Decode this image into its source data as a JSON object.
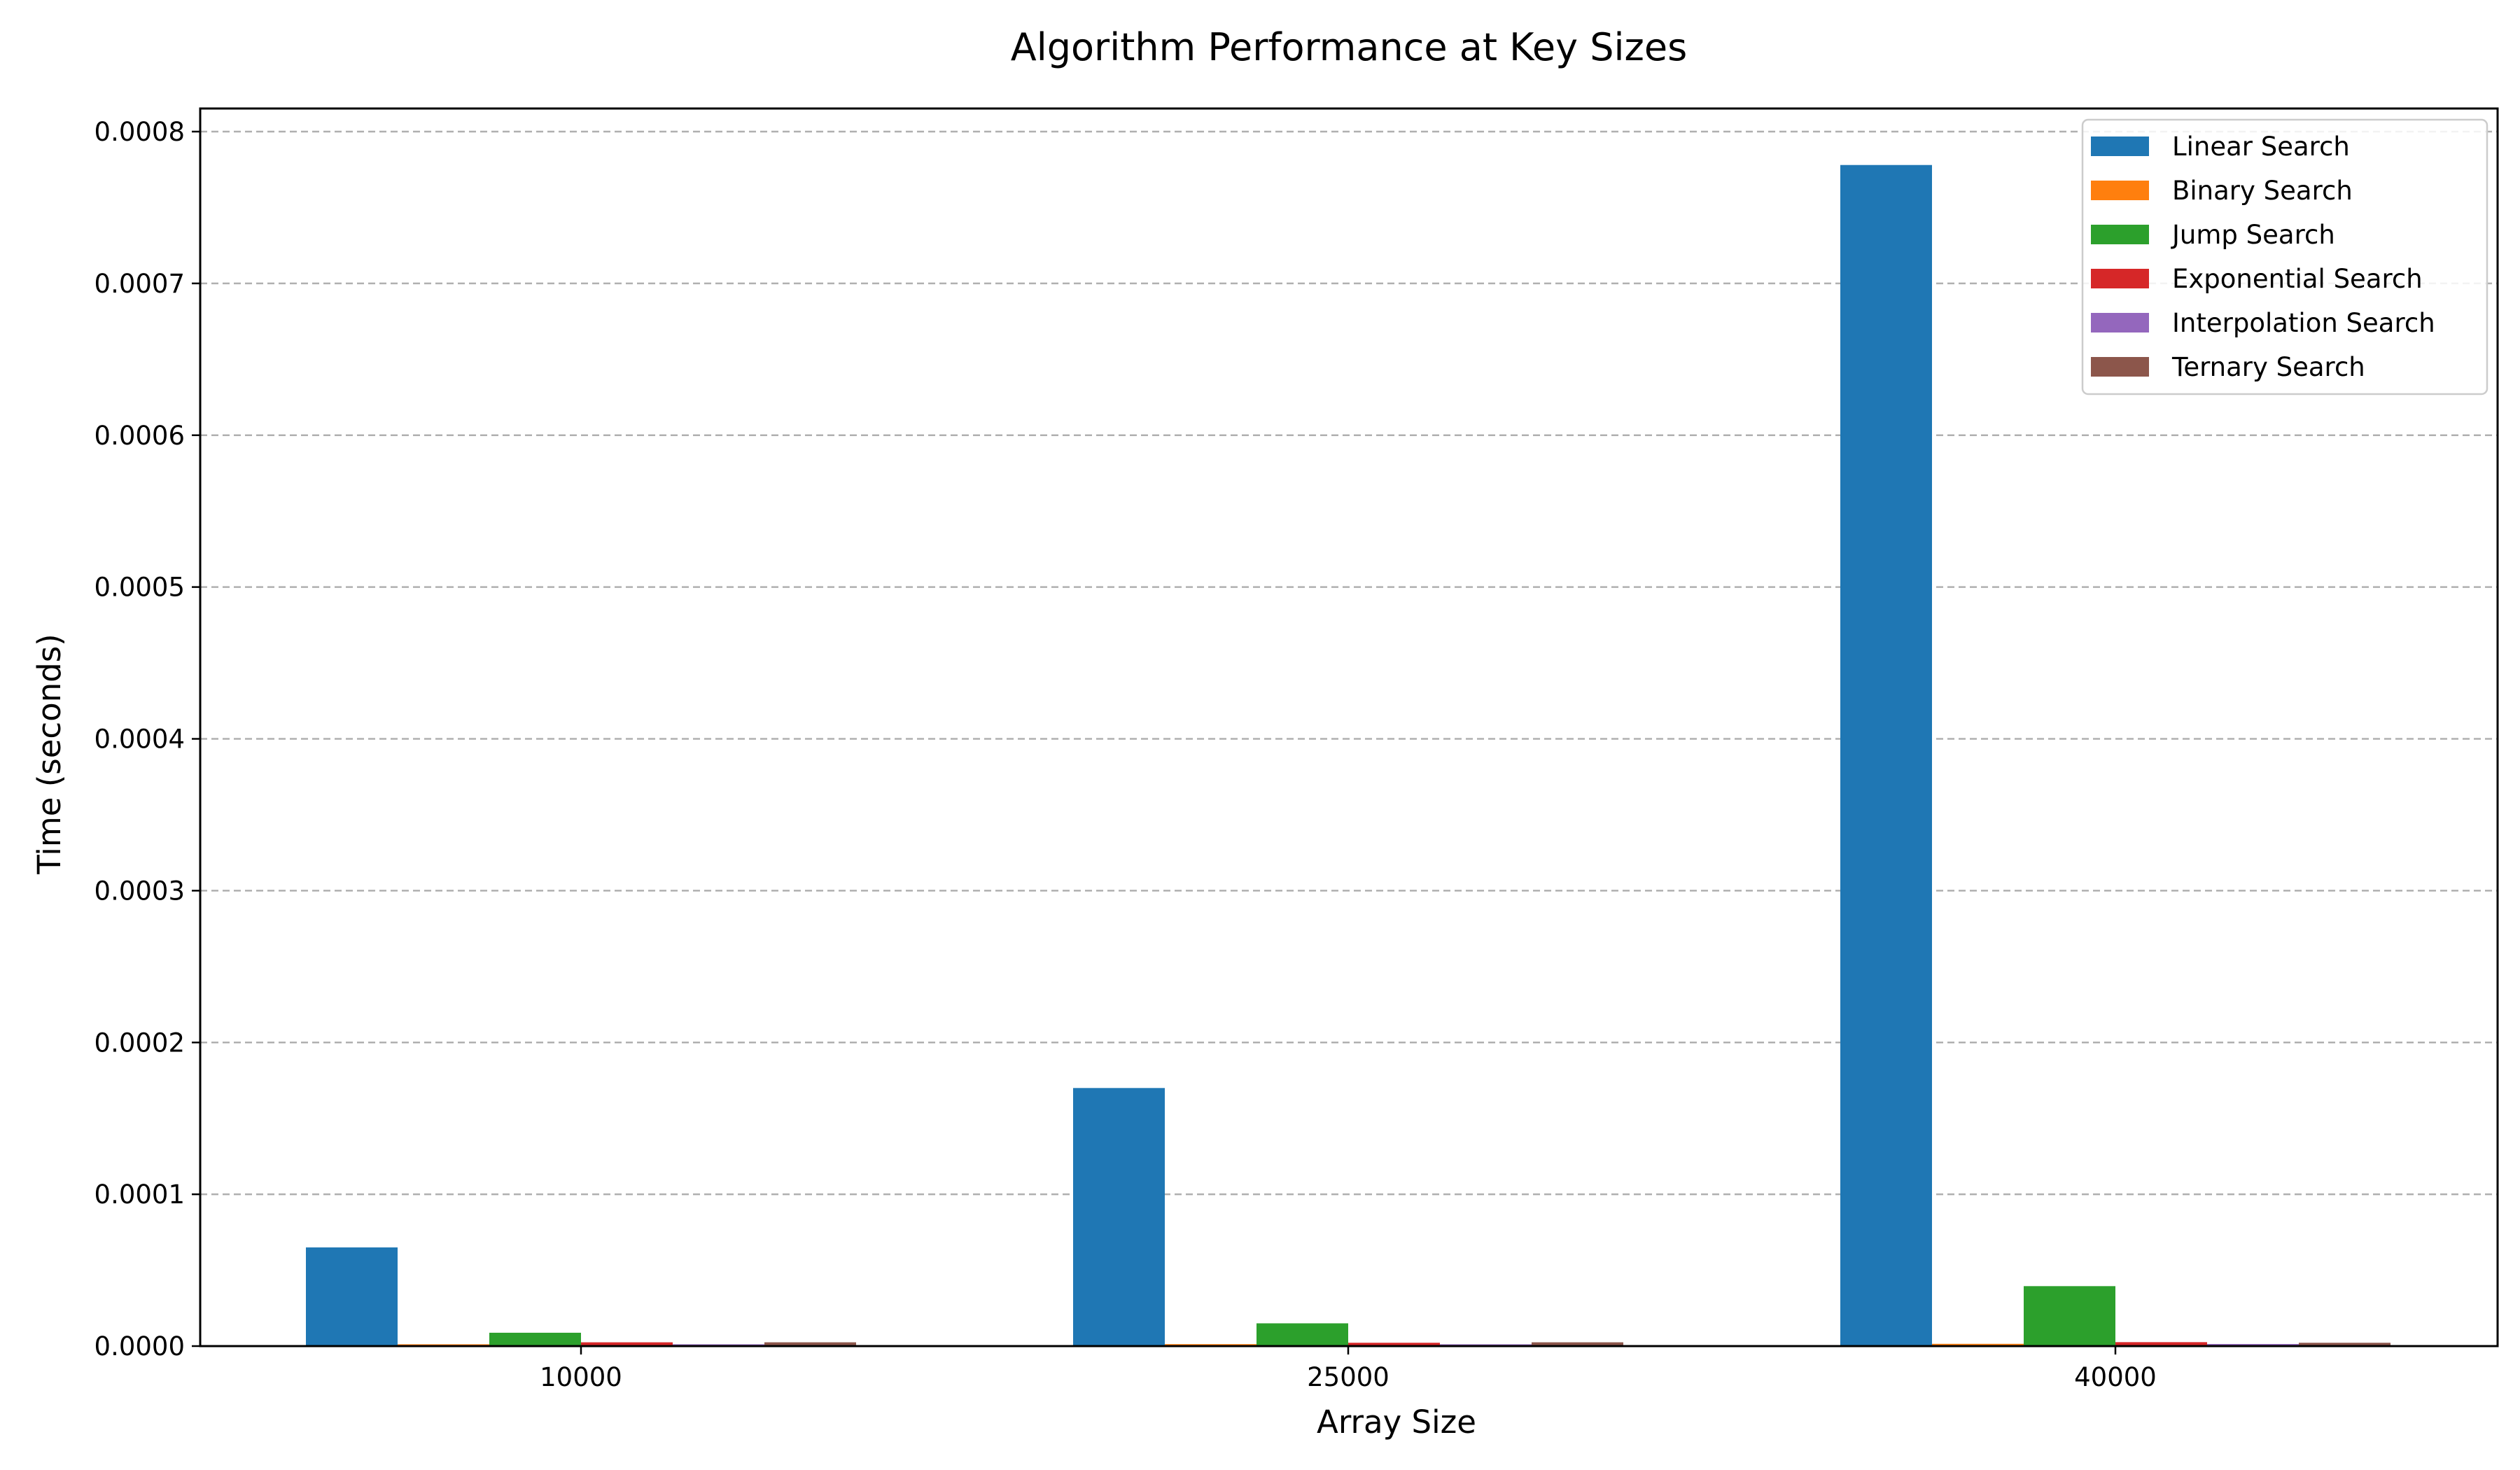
{
  "chart_data": {
    "type": "bar",
    "title": "Algorithm Performance at Key Sizes",
    "xlabel": "Array Size",
    "ylabel": "Time (seconds)",
    "categories": [
      "10000",
      "25000",
      "40000"
    ],
    "ylim": [
      0,
      0.0008
    ],
    "yticks": [
      0.0,
      0.0001,
      0.0002,
      0.0003,
      0.0004,
      0.0005,
      0.0006,
      0.0007,
      0.0008
    ],
    "ytick_labels": [
      "0.0000",
      "0.0001",
      "0.0002",
      "0.0003",
      "0.0004",
      "0.0005",
      "0.0006",
      "0.0007",
      "0.0008"
    ],
    "grid": "y-dashed",
    "legend_position": "top-right",
    "series": [
      {
        "name": "Linear Search",
        "color": "#1f77b4",
        "values": [
          6.5e-05,
          0.00017,
          0.000778
        ]
      },
      {
        "name": "Binary Search",
        "color": "#ff7f0e",
        "values": [
          1.2e-06,
          1.3e-06,
          1.5e-06
        ]
      },
      {
        "name": "Jump Search",
        "color": "#2ca02c",
        "values": [
          8.8e-06,
          1.5e-05,
          3.95e-05
        ]
      },
      {
        "name": "Exponential Search",
        "color": "#d62728",
        "values": [
          2.5e-06,
          2.2e-06,
          2.6e-06
        ]
      },
      {
        "name": "Interpolation Search",
        "color": "#9467bd",
        "values": [
          1.2e-06,
          1.2e-06,
          1.4e-06
        ]
      },
      {
        "name": "Ternary Search",
        "color": "#8c564b",
        "values": [
          2.5e-06,
          2.5e-06,
          2.2e-06
        ]
      }
    ]
  }
}
